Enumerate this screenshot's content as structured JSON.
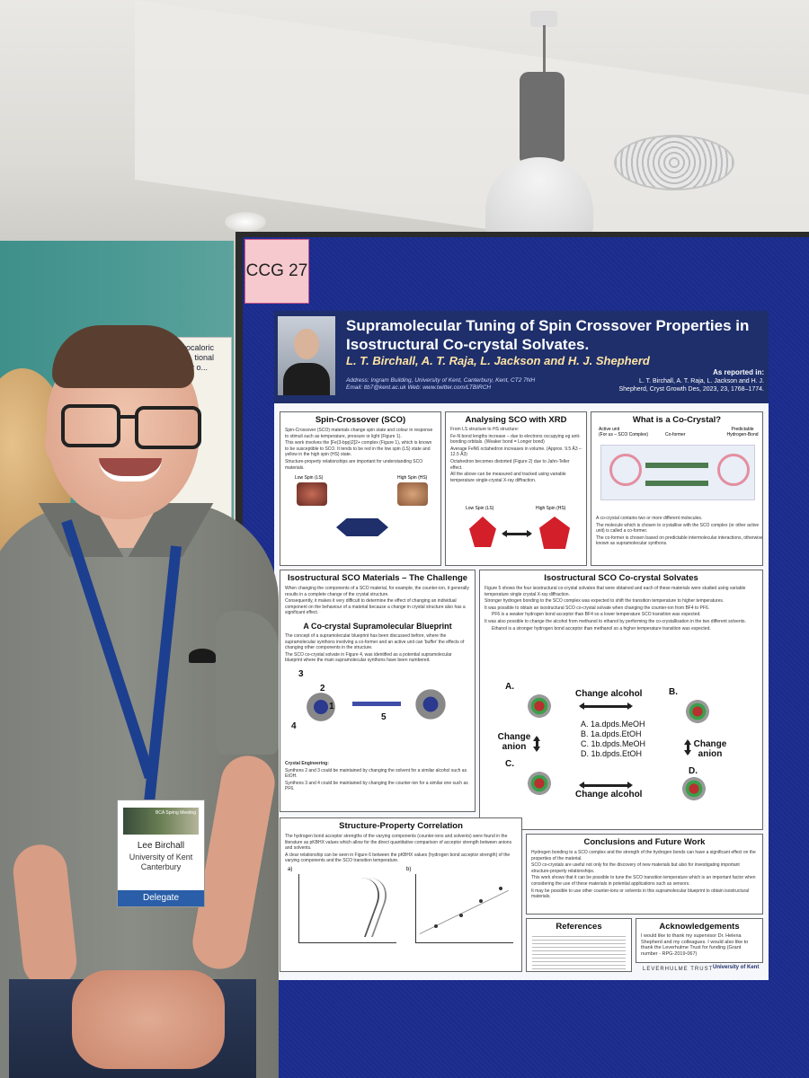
{
  "board_tag": "CCG 27",
  "poster": {
    "title": "Supramolecular Tuning of Spin Crossover Properties in Isostructural Co-crystal Solvates.",
    "authors": "L. T. Birchall, A. T. Raja, L. Jackson and H. J. Shepherd",
    "address": "Address: Ingram Building, University of Kent, Canterbury, Kent, CT2 7NH",
    "contact": "Email: ltb7@kent.ac.uk  Web: www.twitter.com/LTBIRCH",
    "reported_label": "As reported in:",
    "reported_ref": "L. T. Birchall, A. T. Raja, L. Jackson and H. J. Shepherd, Cryst Growth Des, 2023, 23, 1768–1774.",
    "sections": {
      "sco": {
        "title": "Spin-Crossover (SCO)",
        "bullets": [
          "Spin-Crossover (SCO) materials change spin state and colour in response to stimuli such as temperature, pressure or light (Figure 1).",
          "This work involves the [Fe(3-bpp)2]2+ complex (Figure 1), which is known to be susceptible to SCO. It tends to be red in the low spin (LS) state and yellow in the high spin (HS) state.",
          "Structure-property relationships are important for understanding SCO materials."
        ],
        "low_spin": "Low Spin (LS)",
        "high_spin": "High Spin (HS)"
      },
      "xrd": {
        "title": "Analysing SCO with XRD",
        "intro": "From LS structure to HS structure:",
        "bullets": [
          "Fe-N bond lengths increase – due to electrons occupying eg anti-bonding orbitals. (Weaker bond = Longer bond)",
          "Average FeN6 octahedron increases in volume. (Approx. 9.5 Å3 – 12.5 Å3)",
          "Octahedron becomes distorted (Figure 2) due to Jahn-Teller effect."
        ],
        "outro": "All the above can be measured and tracked using variable temperature single-crystal X-ray diffraction.",
        "low_spin": "Low Spin (LS)",
        "high_spin": "High Spin (HS)"
      },
      "cocrystal": {
        "title": "What is a Co-Crystal?",
        "active": "Active unit",
        "active_note": "(For us – SCO Complex)",
        "coformer": "Co-former",
        "hbond": "Predictable Hydrogen-Bond",
        "bullets": [
          "A co-crystal contains two or more different molecules.",
          "The molecule which is chosen to crystallise with the SCO complex (or other active unit) is called a co-former.",
          "The co-former is chosen based on predictable intermolecular interactions, otherwise known as supramolecular synthons."
        ]
      },
      "challenge": {
        "title": "Isostructural SCO Materials – The Challenge",
        "bullets": [
          "When changing the components of a SCO material, for example, the counter-ion, it generally results in a complete change of the crystal structure.",
          "Consequently, it makes it very difficult to determine the effect of changing an individual component on the behaviour of a material because a change in crystal structure also has a significant effect."
        ]
      },
      "blueprint": {
        "title": "A Co-crystal Supramolecular Blueprint",
        "bullets": [
          "The concept of a supramolecular blueprint has been discussed before, where the supramolecular synthons involving a co-former and an active unit can 'buffer' the effects of changing other components in the structure.",
          "The SCO co-crystal solvate in Figure 4, was identified as a potential supramolecular blueprint where the main supramolecular synthons have been numbered."
        ],
        "labels": [
          "3",
          "2",
          "1",
          "4",
          "5"
        ],
        "engineering": "Crystal Engineering:",
        "eng_bullets": [
          "Synthons 2 and 3 could be maintained by changing the solvent for a similar alcohol such as EtOH.",
          "Synthons 3 and 4 could be maintained by changing the counter-ion for a similar one such as PF6."
        ]
      },
      "solvates": {
        "title": "Isostructural SCO Co-crystal Solvates",
        "bullets": [
          "Figure 5 shows the four isostructural co-crystal solvates that were obtained and each of these materials were studied using variable temperature single crystal X-ray diffraction.",
          "Stronger hydrogen bonding to the SCO complex was expected to shift the transition temperature to higher temperatures.",
          "It was possible to obtain an isostructural SCO co-crystal solvate when changing the counter-ion from BF4 to PF6.",
          "PF6 is a weaker hydrogen bond acceptor than BF4 so a lower temperature SCO transition was expected.",
          "It was also possible to change the alcohol from methanol to ethanol by performing the co-crystallisation in the two different solvents.",
          "Ethanol is a stronger hydrogen bond acceptor than methanol so a higher temperature transition was expected."
        ],
        "a": "A.",
        "b": "B.",
        "c": "C.",
        "d": "D.",
        "change_alcohol": "Change alcohol",
        "change_anion": "Change anion",
        "list": [
          "A. 1a.dpds.MeOH",
          "B. 1a.dpds.EtOH",
          "C. 1b.dpds.MeOH",
          "D. 1b.dpds.EtOH"
        ]
      },
      "correlation": {
        "title": "Structure-Property Correlation",
        "text": "The hydrogen bond acceptor strengths of the varying components (counter-ions and solvents) were found in the literature as pKBHX values which allow for the direct quantitative comparison of acceptor strength between anions and solvents.",
        "text2": "A clear relationship can be seen in Figure 6 between the pKBHX values (hydrogen bond acceptor strength) of the varying components and the SCO transition temperature.",
        "panel_a": "a)",
        "panel_b": "b)"
      },
      "conclusions": {
        "title": "Conclusions and Future Work",
        "bullets": [
          "Hydrogen bonding to a SCO complex and the strength of the hydrogen bonds can have a significant effect on the properties of the material.",
          "SCO co-crystals are useful not only for the discovery of new materials but also for investigating important structure-property relationships.",
          "This work shows that it can be possible to tune the SCO transition temperature which is an important factor when considering the use of these materials in potential applications such as sensors.",
          "It may be possible to use other counter-ions or solvents in this supramolecular blueprint to obtain isostructural materials."
        ]
      },
      "references": {
        "title": "References"
      },
      "acknowledgements": {
        "title": "Acknowledgements",
        "text": "I would like to thank my supervisor Dr. Helena Shepherd and my colleagues. I would also like to thank the Leverhulme Trust for funding (Grant number - RPG-2019-067)"
      }
    },
    "footer": [
      "LEVERHULME TRUST",
      "University of Kent"
    ]
  },
  "badge": {
    "event": "BCA Spring Meeting",
    "name": "Lee Birchall",
    "institution": "University of Kent Canterbury",
    "role": "Delegate"
  },
  "back_poster_title": "Barocaloric Por... tional Study o..."
}
